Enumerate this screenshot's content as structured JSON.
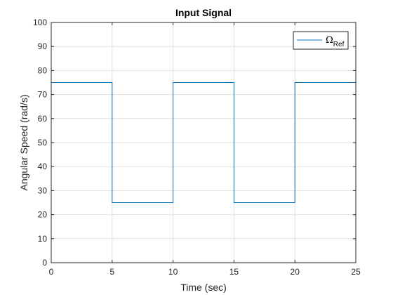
{
  "chart_data": {
    "type": "line",
    "title": "Input Signal",
    "xlabel": "Time (sec)",
    "ylabel": "Angular Speed (rad/s)",
    "xlim": [
      0,
      25
    ],
    "ylim": [
      0,
      100
    ],
    "xticks": [
      0,
      5,
      10,
      15,
      20,
      25
    ],
    "yticks": [
      0,
      10,
      20,
      30,
      40,
      50,
      60,
      70,
      80,
      90,
      100
    ],
    "grid": true,
    "legend_position": "top-right",
    "series": [
      {
        "name": "Ω",
        "name_subscript": "Ref",
        "color": "#0072BD",
        "x": [
          0,
          5,
          5,
          10,
          10,
          15,
          15,
          20,
          20,
          25,
          25
        ],
        "y": [
          75,
          75,
          25,
          25,
          75,
          75,
          25,
          25,
          75,
          75,
          0
        ]
      }
    ]
  }
}
